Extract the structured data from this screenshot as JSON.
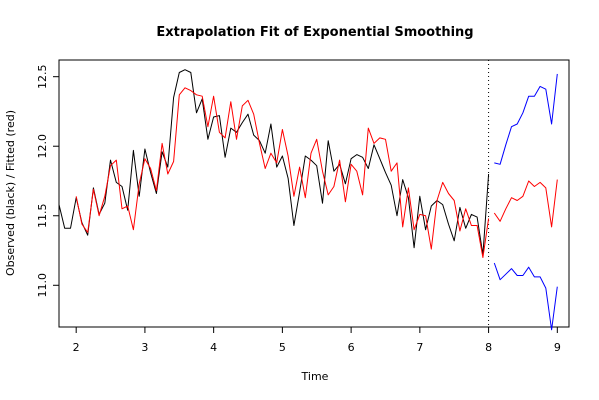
{
  "chart_data": {
    "type": "line",
    "title": "Extrapolation Fit of Exponential Smoothing",
    "xlabel": "Time",
    "ylabel": "Observed (black) / Fitted (red)",
    "xlim": [
      1.75,
      9.17
    ],
    "ylim": [
      10.7,
      12.62
    ],
    "xticks": [
      2,
      3,
      4,
      5,
      6,
      7,
      8,
      9
    ],
    "yticks": [
      11.0,
      11.5,
      12.0,
      12.5
    ],
    "grid": false,
    "forecast_origin": 8.0,
    "series": [
      {
        "color": "#000000",
        "x": [
          1.75,
          1.833,
          1.917,
          2.0,
          2.083,
          2.167,
          2.25,
          2.333,
          2.417,
          2.5,
          2.583,
          2.667,
          2.75,
          2.833,
          2.917,
          3.0,
          3.083,
          3.167,
          3.25,
          3.333,
          3.417,
          3.5,
          3.583,
          3.667,
          3.75,
          3.833,
          3.917,
          4.0,
          4.083,
          4.167,
          4.25,
          4.333,
          4.417,
          4.5,
          4.583,
          4.667,
          4.75,
          4.833,
          4.917,
          5.0,
          5.083,
          5.167,
          5.25,
          5.333,
          5.417,
          5.5,
          5.583,
          5.667,
          5.75,
          5.833,
          5.917,
          6.0,
          6.083,
          6.167,
          6.25,
          6.333,
          6.417,
          6.5,
          6.583,
          6.667,
          6.75,
          6.833,
          6.917,
          7.0,
          7.083,
          7.167,
          7.25,
          7.333,
          7.417,
          7.5,
          7.583,
          7.667,
          7.75,
          7.833,
          7.917,
          8.0
        ],
        "values": [
          11.58,
          11.41,
          11.41,
          11.63,
          11.45,
          11.36,
          11.7,
          11.51,
          11.59,
          11.9,
          11.74,
          11.71,
          11.54,
          11.97,
          11.64,
          11.98,
          11.81,
          11.66,
          11.96,
          11.85,
          12.35,
          12.53,
          12.55,
          12.53,
          12.24,
          12.34,
          12.05,
          12.21,
          12.22,
          11.92,
          12.13,
          12.1,
          12.17,
          12.23,
          12.08,
          12.04,
          11.95,
          12.16,
          11.85,
          11.93,
          11.77,
          11.43,
          11.67,
          11.93,
          11.9,
          11.86,
          11.59,
          12.04,
          11.82,
          11.87,
          11.73,
          11.91,
          11.94,
          11.92,
          11.84,
          12.01,
          11.91,
          11.81,
          11.72,
          11.5,
          11.76,
          11.63,
          11.27,
          11.64,
          11.4,
          11.57,
          11.61,
          11.58,
          11.44,
          11.32,
          11.56,
          11.41,
          11.51,
          11.49,
          11.22,
          11.8
        ]
      },
      {
        "color": "#ff0000",
        "x": [
          2.0,
          2.083,
          2.167,
          2.25,
          2.333,
          2.417,
          2.5,
          2.583,
          2.667,
          2.75,
          2.833,
          2.917,
          3.0,
          3.083,
          3.167,
          3.25,
          3.333,
          3.417,
          3.5,
          3.583,
          3.667,
          3.75,
          3.833,
          3.917,
          4.0,
          4.083,
          4.167,
          4.25,
          4.333,
          4.417,
          4.5,
          4.583,
          4.667,
          4.75,
          4.833,
          4.917,
          5.0,
          5.083,
          5.167,
          5.25,
          5.333,
          5.417,
          5.5,
          5.583,
          5.667,
          5.75,
          5.833,
          5.917,
          6.0,
          6.083,
          6.167,
          6.25,
          6.333,
          6.417,
          6.5,
          6.583,
          6.667,
          6.75,
          6.833,
          6.917,
          7.0,
          7.083,
          7.167,
          7.25,
          7.333,
          7.417,
          7.5,
          7.583,
          7.667,
          7.75,
          7.833,
          7.917,
          8.0
        ],
        "values": [
          11.64,
          11.44,
          11.38,
          11.69,
          11.5,
          11.64,
          11.86,
          11.9,
          11.55,
          11.57,
          11.4,
          11.73,
          11.91,
          11.84,
          11.68,
          12.02,
          11.8,
          11.89,
          12.37,
          12.42,
          12.4,
          12.37,
          12.36,
          12.14,
          12.36,
          12.1,
          12.06,
          12.32,
          12.05,
          12.29,
          12.33,
          12.23,
          12.02,
          11.84,
          11.95,
          11.88,
          12.12,
          11.93,
          11.64,
          11.85,
          11.63,
          11.95,
          12.05,
          11.82,
          11.65,
          11.71,
          11.9,
          11.6,
          11.87,
          11.82,
          11.65,
          12.13,
          12.02,
          12.06,
          12.05,
          11.82,
          11.88,
          11.42,
          11.7,
          11.4,
          11.51,
          11.5,
          11.26,
          11.61,
          11.74,
          11.66,
          11.61,
          11.39,
          11.55,
          11.43,
          11.43,
          11.2,
          11.48
        ]
      },
      {
        "color": "#ff0000",
        "x": [
          8.083,
          8.167,
          8.25,
          8.333,
          8.417,
          8.5,
          8.583,
          8.667,
          8.75,
          8.833,
          8.917,
          9.0
        ],
        "values": [
          11.52,
          11.46,
          11.55,
          11.63,
          11.61,
          11.64,
          11.75,
          11.71,
          11.74,
          11.7,
          11.42,
          11.76
        ]
      },
      {
        "color": "#0000ff",
        "x": [
          8.083,
          8.167,
          8.25,
          8.333,
          8.417,
          8.5,
          8.583,
          8.667,
          8.75,
          8.833,
          8.917,
          9.0
        ],
        "values": [
          11.88,
          11.87,
          12.01,
          12.14,
          12.16,
          12.24,
          12.36,
          12.36,
          12.43,
          12.41,
          12.16,
          12.52
        ]
      },
      {
        "color": "#0000ff",
        "x": [
          8.083,
          8.167,
          8.25,
          8.333,
          8.417,
          8.5,
          8.583,
          8.667,
          8.75,
          8.833,
          8.917,
          9.0
        ],
        "values": [
          11.16,
          11.04,
          11.08,
          11.12,
          11.07,
          11.07,
          11.13,
          11.06,
          11.06,
          10.98,
          10.68,
          10.99
        ]
      }
    ]
  }
}
